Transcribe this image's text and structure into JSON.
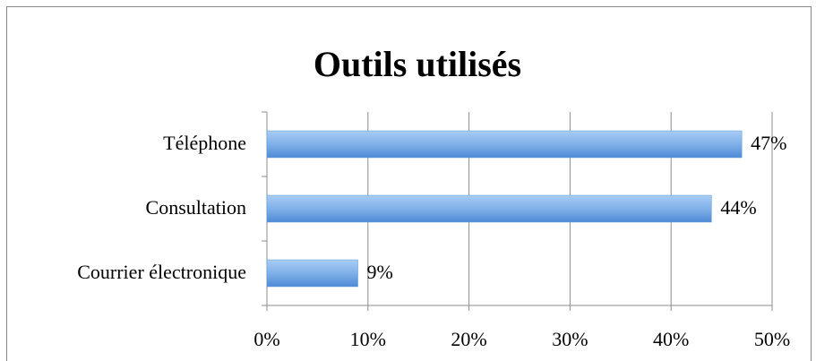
{
  "chart_data": {
    "type": "hbar",
    "title": "Outils utilisés",
    "categories": [
      "Téléphone",
      "Consultation",
      "Courrier électronique"
    ],
    "values": [
      47,
      44,
      9
    ],
    "value_labels": [
      "47%",
      "44%",
      "9%"
    ],
    "color": "#5b9bd5",
    "xlim": [
      0,
      50
    ],
    "xticks": [
      {
        "value": 0,
        "label": "0%"
      },
      {
        "value": 10,
        "label": "10%"
      },
      {
        "value": 20,
        "label": "20%"
      },
      {
        "value": 30,
        "label": "30%"
      },
      {
        "value": 40,
        "label": "40%"
      },
      {
        "value": 50,
        "label": "50%"
      }
    ],
    "grid": true
  }
}
